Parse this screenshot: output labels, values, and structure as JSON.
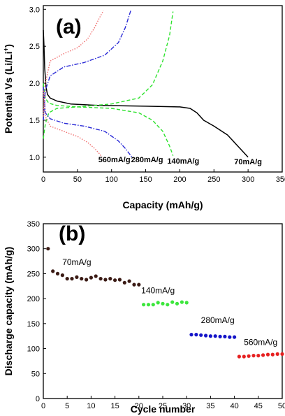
{
  "chart_data": [
    {
      "panel": "(a)",
      "type": "line",
      "xlabel": "Capacity (mAh/g)",
      "ylabel": "Potential Vs (Li/Li",
      "ylabel_sup": "+",
      "ylabel_close": ")",
      "xlim": [
        0,
        350
      ],
      "ylim": [
        0.8,
        3.05
      ],
      "xticks": [
        0,
        50,
        100,
        150,
        200,
        250,
        300,
        350
      ],
      "yticks": [
        1.0,
        1.5,
        2.0,
        2.5,
        3.0
      ],
      "grid": false,
      "annotations": [
        {
          "text": "560mA/g",
          "x": 104,
          "y": 0.97
        },
        {
          "text": "280mA/g",
          "x": 152,
          "y": 0.97
        },
        {
          "text": "140mA/g",
          "x": 205,
          "y": 0.95
        },
        {
          "text": "70mA/g",
          "x": 300,
          "y": 0.94
        }
      ],
      "series": [
        {
          "rate": "70mA/g",
          "color": "#000000",
          "dash": "solid",
          "curve": "discharge",
          "x": [
            0,
            1,
            2,
            4,
            6,
            10,
            20,
            40,
            80,
            150,
            200,
            215,
            225,
            235,
            250,
            270,
            285,
            300
          ],
          "y": [
            2.72,
            2.5,
            2.2,
            1.95,
            1.85,
            1.8,
            1.76,
            1.72,
            1.7,
            1.69,
            1.68,
            1.66,
            1.6,
            1.5,
            1.42,
            1.3,
            1.15,
            1.0
          ]
        },
        {
          "rate": "140mA/g",
          "color": "#2ee22e",
          "dash": "dash",
          "curve": "discharge",
          "x": [
            0,
            3,
            8,
            20,
            50,
            100,
            140,
            160,
            175,
            185,
            190
          ],
          "y": [
            2.0,
            1.8,
            1.73,
            1.7,
            1.68,
            1.66,
            1.6,
            1.5,
            1.35,
            1.15,
            1.02
          ]
        },
        {
          "rate": "140mA/g",
          "color": "#2ee22e",
          "dash": "dash",
          "curve": "charge",
          "x": [
            0,
            3,
            8,
            20,
            50,
            100,
            140,
            160,
            175,
            185,
            190
          ],
          "y": [
            1.25,
            1.45,
            1.6,
            1.66,
            1.68,
            1.72,
            1.8,
            1.98,
            2.3,
            2.65,
            2.97
          ]
        },
        {
          "rate": "280mA/g",
          "color": "#2a2ad6",
          "dash": "dashdot",
          "curve": "discharge",
          "x": [
            0,
            3,
            10,
            30,
            60,
            90,
            110,
            120,
            130
          ],
          "y": [
            1.95,
            1.6,
            1.52,
            1.46,
            1.42,
            1.35,
            1.22,
            1.12,
            1.0
          ]
        },
        {
          "rate": "280mA/g",
          "color": "#2a2ad6",
          "dash": "dashdot",
          "curve": "charge",
          "x": [
            0,
            3,
            10,
            30,
            60,
            90,
            110,
            120,
            128
          ],
          "y": [
            1.5,
            1.9,
            2.1,
            2.22,
            2.28,
            2.38,
            2.55,
            2.75,
            2.98
          ]
        },
        {
          "rate": "560mA/g",
          "color": "#f07070",
          "dash": "dot",
          "curve": "discharge",
          "x": [
            0,
            3,
            10,
            30,
            50,
            65,
            75,
            82,
            86
          ],
          "y": [
            1.9,
            1.55,
            1.42,
            1.35,
            1.28,
            1.2,
            1.12,
            1.05,
            1.0
          ]
        },
        {
          "rate": "560mA/g",
          "color": "#f07070",
          "dash": "dot",
          "curve": "charge",
          "x": [
            0,
            3,
            10,
            30,
            50,
            65,
            75,
            82,
            88
          ],
          "y": [
            1.55,
            2.0,
            2.3,
            2.4,
            2.48,
            2.6,
            2.75,
            2.88,
            2.98
          ]
        }
      ]
    },
    {
      "panel": "(b)",
      "type": "scatter",
      "xlabel": "Cycle number",
      "ylabel": "Discharge capacity (mAh/g)",
      "xlim": [
        0,
        50
      ],
      "ylim": [
        0,
        350
      ],
      "xticks": [
        0,
        5,
        10,
        15,
        20,
        25,
        30,
        35,
        40,
        45,
        50
      ],
      "yticks": [
        0,
        50,
        100,
        150,
        200,
        250,
        300,
        350
      ],
      "grid": false,
      "annotations": [
        {
          "text": "70mA/g",
          "x": 7,
          "y": 273
        },
        {
          "text": "140mA/g",
          "x": 24,
          "y": 216
        },
        {
          "text": "280mA/g",
          "x": 36.5,
          "y": 157
        },
        {
          "text": "560mA/g",
          "x": 45.5,
          "y": 113
        }
      ],
      "series": [
        {
          "rate": "70mA/g",
          "color": "#3a1a14",
          "x": [
            1,
            2,
            3,
            4,
            5,
            6,
            7,
            8,
            9,
            10,
            11,
            12,
            13,
            14,
            15,
            16,
            17,
            18,
            19,
            20
          ],
          "y": [
            300,
            255,
            250,
            247,
            240,
            240,
            243,
            240,
            238,
            242,
            245,
            240,
            238,
            240,
            237,
            238,
            232,
            235,
            228,
            228
          ]
        },
        {
          "rate": "140mA/g",
          "color": "#3ce63c",
          "x": [
            21,
            22,
            23,
            24,
            25,
            26,
            27,
            28,
            29,
            30
          ],
          "y": [
            188,
            188,
            188,
            192,
            190,
            188,
            193,
            190,
            193,
            192
          ]
        },
        {
          "rate": "280mA/g",
          "color": "#1414c8",
          "x": [
            31,
            32,
            33,
            34,
            35,
            36,
            37,
            38,
            39,
            40
          ],
          "y": [
            128,
            128,
            127,
            126,
            125,
            125,
            124,
            124,
            123,
            123
          ]
        },
        {
          "rate": "560mA/g",
          "color": "#e62020",
          "x": [
            41,
            42,
            43,
            44,
            45,
            46,
            47,
            48,
            49,
            50
          ],
          "y": [
            84,
            84,
            85,
            86,
            86,
            87,
            88,
            88,
            89,
            89
          ]
        }
      ]
    }
  ]
}
